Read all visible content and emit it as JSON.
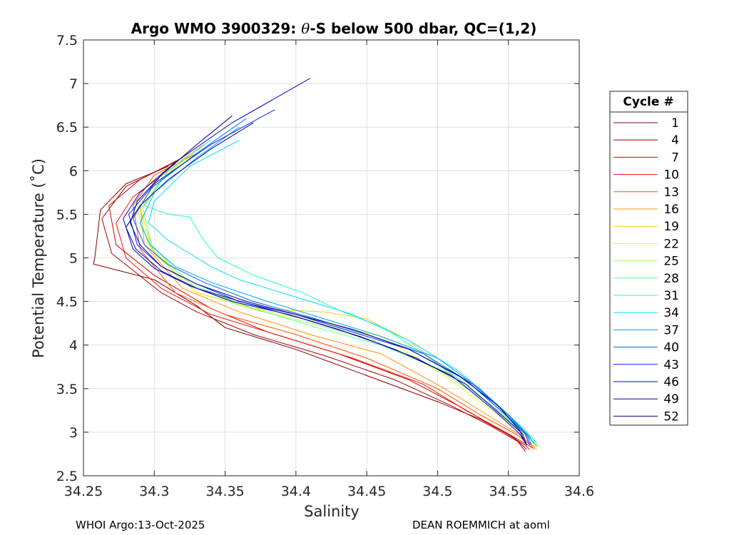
{
  "chart_data": {
    "type": "line",
    "title": "Argo WMO 3900329: θ-S below 500 dbar,  QC=(1,2)",
    "title_parts": {
      "pre": "Argo WMO 3900329: ",
      "theta": "θ",
      "post": "-S below 500 dbar,  QC=(1,2)"
    },
    "xlabel": "Salinity",
    "ylabel": "Potential Temperature (˚C)",
    "xlim": [
      34.25,
      34.6
    ],
    "ylim": [
      2.5,
      7.5
    ],
    "xticks": [
      34.25,
      34.3,
      34.35,
      34.4,
      34.45,
      34.5,
      34.55,
      34.6
    ],
    "xtick_labels": [
      "34.25",
      "34.3",
      "34.35",
      "34.4",
      "34.45",
      "34.5",
      "34.55",
      "34.6"
    ],
    "yticks": [
      2.5,
      3,
      3.5,
      4,
      4.5,
      5,
      5.5,
      6,
      6.5,
      7,
      7.5
    ],
    "ytick_labels": [
      "2.5",
      "3",
      "3.5",
      "4",
      "4.5",
      "5",
      "5.5",
      "6",
      "6.5",
      "7",
      "7.5"
    ],
    "grid": true,
    "legend_title": "Cycle #",
    "legend_position": "right",
    "series": [
      {
        "name": "1",
        "color": "#800000",
        "points": [
          [
            34.31,
            6.05
          ],
          [
            34.28,
            5.85
          ],
          [
            34.262,
            5.55
          ],
          [
            34.258,
            5.0
          ],
          [
            34.257,
            4.93
          ],
          [
            34.3,
            4.75
          ],
          [
            34.33,
            4.45
          ],
          [
            34.35,
            4.2
          ],
          [
            34.4,
            3.95
          ],
          [
            34.45,
            3.65
          ],
          [
            34.5,
            3.35
          ],
          [
            34.53,
            3.15
          ],
          [
            34.555,
            2.93
          ],
          [
            34.562,
            2.78
          ]
        ]
      },
      {
        "name": "4",
        "color": "#a80000",
        "points": [
          [
            34.315,
            6.1
          ],
          [
            34.28,
            5.82
          ],
          [
            34.263,
            5.45
          ],
          [
            34.27,
            5.05
          ],
          [
            34.305,
            4.6
          ],
          [
            34.33,
            4.38
          ],
          [
            34.37,
            4.12
          ],
          [
            34.42,
            3.88
          ],
          [
            34.47,
            3.6
          ],
          [
            34.51,
            3.3
          ],
          [
            34.54,
            3.05
          ],
          [
            34.558,
            2.88
          ],
          [
            34.563,
            2.8
          ]
        ]
      },
      {
        "name": "7",
        "color": "#d00000",
        "points": [
          [
            34.32,
            6.15
          ],
          [
            34.29,
            5.9
          ],
          [
            34.268,
            5.6
          ],
          [
            34.273,
            5.15
          ],
          [
            34.3,
            4.8
          ],
          [
            34.34,
            4.42
          ],
          [
            34.38,
            4.15
          ],
          [
            34.43,
            3.9
          ],
          [
            34.48,
            3.6
          ],
          [
            34.515,
            3.3
          ],
          [
            34.545,
            3.02
          ],
          [
            34.562,
            2.85
          ],
          [
            34.565,
            2.8
          ]
        ]
      },
      {
        "name": "10",
        "color": "#ff1000",
        "points": [
          [
            34.31,
            6.0
          ],
          [
            34.285,
            5.7
          ],
          [
            34.273,
            5.4
          ],
          [
            34.28,
            5.0
          ],
          [
            34.305,
            4.65
          ],
          [
            34.34,
            4.35
          ],
          [
            34.39,
            4.1
          ],
          [
            34.44,
            3.85
          ],
          [
            34.49,
            3.55
          ],
          [
            34.52,
            3.25
          ],
          [
            34.548,
            3.0
          ],
          [
            34.563,
            2.86
          ],
          [
            34.567,
            2.82
          ]
        ]
      },
      {
        "name": "13",
        "color": "#ff5000",
        "points": [
          [
            34.33,
            6.2
          ],
          [
            34.3,
            5.95
          ],
          [
            34.285,
            5.6
          ],
          [
            34.29,
            5.1
          ],
          [
            34.315,
            4.6
          ],
          [
            34.35,
            4.35
          ],
          [
            34.4,
            4.12
          ],
          [
            34.45,
            3.85
          ],
          [
            34.5,
            3.5
          ],
          [
            34.53,
            3.2
          ],
          [
            34.555,
            2.98
          ],
          [
            34.566,
            2.85
          ],
          [
            34.568,
            2.8
          ]
        ]
      },
      {
        "name": "16",
        "color": "#ff9000",
        "points": [
          [
            34.335,
            6.3
          ],
          [
            34.305,
            5.95
          ],
          [
            34.29,
            5.6
          ],
          [
            34.293,
            5.15
          ],
          [
            34.32,
            4.65
          ],
          [
            34.36,
            4.38
          ],
          [
            34.41,
            4.12
          ],
          [
            34.46,
            3.9
          ],
          [
            34.505,
            3.5
          ],
          [
            34.535,
            3.2
          ],
          [
            34.558,
            2.97
          ],
          [
            34.567,
            2.85
          ],
          [
            34.57,
            2.8
          ]
        ]
      },
      {
        "name": "19",
        "color": "#ffd000",
        "points": [
          [
            34.33,
            6.25
          ],
          [
            34.305,
            5.9
          ],
          [
            34.29,
            5.55
          ],
          [
            34.3,
            5.05
          ],
          [
            34.33,
            4.6
          ],
          [
            34.37,
            4.42
          ],
          [
            34.42,
            4.38
          ],
          [
            34.45,
            4.3
          ],
          [
            34.48,
            4.05
          ],
          [
            34.51,
            3.65
          ],
          [
            34.54,
            3.25
          ],
          [
            34.56,
            3.0
          ],
          [
            34.568,
            2.88
          ],
          [
            34.57,
            2.83
          ]
        ]
      },
      {
        "name": "22",
        "color": "#e0ff20",
        "points": [
          [
            34.325,
            6.2
          ],
          [
            34.302,
            5.9
          ],
          [
            34.29,
            5.6
          ],
          [
            34.298,
            5.1
          ],
          [
            34.33,
            4.65
          ],
          [
            34.37,
            4.42
          ],
          [
            34.42,
            4.25
          ],
          [
            34.46,
            4.1
          ],
          [
            34.5,
            3.7
          ],
          [
            34.53,
            3.35
          ],
          [
            34.555,
            3.05
          ],
          [
            34.568,
            2.88
          ],
          [
            34.571,
            2.83
          ]
        ]
      },
      {
        "name": "25",
        "color": "#a0ff60",
        "points": [
          [
            34.33,
            6.2
          ],
          [
            34.3,
            5.85
          ],
          [
            34.288,
            5.55
          ],
          [
            34.296,
            5.15
          ],
          [
            34.32,
            4.72
          ],
          [
            34.36,
            4.45
          ],
          [
            34.41,
            4.25
          ],
          [
            34.455,
            4.05
          ],
          [
            34.5,
            3.72
          ],
          [
            34.53,
            3.4
          ],
          [
            34.555,
            3.1
          ],
          [
            34.566,
            2.92
          ],
          [
            34.57,
            2.85
          ]
        ]
      },
      {
        "name": "28",
        "color": "#60ff90",
        "points": [
          [
            34.335,
            6.25
          ],
          [
            34.305,
            5.9
          ],
          [
            34.292,
            5.58
          ],
          [
            34.298,
            5.15
          ],
          [
            34.325,
            4.7
          ],
          [
            34.37,
            4.42
          ],
          [
            34.415,
            4.2
          ],
          [
            34.46,
            4.0
          ],
          [
            34.505,
            3.7
          ],
          [
            34.535,
            3.35
          ],
          [
            34.558,
            3.05
          ],
          [
            34.568,
            2.88
          ],
          [
            34.572,
            2.84
          ]
        ]
      },
      {
        "name": "31",
        "color": "#20ffc0",
        "points": [
          [
            34.34,
            6.35
          ],
          [
            34.31,
            6.0
          ],
          [
            34.293,
            5.6
          ],
          [
            34.31,
            5.5
          ],
          [
            34.325,
            5.47
          ],
          [
            34.335,
            5.2
          ],
          [
            34.345,
            5.0
          ],
          [
            34.37,
            4.8
          ],
          [
            34.405,
            4.6
          ],
          [
            34.43,
            4.4
          ],
          [
            34.462,
            4.2
          ],
          [
            34.49,
            3.9
          ],
          [
            34.52,
            3.55
          ],
          [
            34.545,
            3.2
          ],
          [
            34.562,
            2.98
          ],
          [
            34.57,
            2.85
          ]
        ]
      },
      {
        "name": "34",
        "color": "#00e0ff",
        "points": [
          [
            34.36,
            6.35
          ],
          [
            34.325,
            6.05
          ],
          [
            34.3,
            5.65
          ],
          [
            34.296,
            5.4
          ],
          [
            34.31,
            5.2
          ],
          [
            34.33,
            5.0
          ],
          [
            34.34,
            4.9
          ],
          [
            34.36,
            4.75
          ],
          [
            34.4,
            4.55
          ],
          [
            34.44,
            4.35
          ],
          [
            34.48,
            4.05
          ],
          [
            34.515,
            3.7
          ],
          [
            34.54,
            3.35
          ],
          [
            34.56,
            3.05
          ],
          [
            34.57,
            2.88
          ]
        ]
      },
      {
        "name": "37",
        "color": "#00a0ff",
        "points": [
          [
            34.36,
            6.5
          ],
          [
            34.33,
            6.15
          ],
          [
            34.3,
            5.75
          ],
          [
            34.29,
            5.4
          ],
          [
            34.297,
            5.15
          ],
          [
            34.315,
            4.9
          ],
          [
            34.34,
            4.72
          ],
          [
            34.38,
            4.5
          ],
          [
            34.42,
            4.3
          ],
          [
            34.46,
            4.1
          ],
          [
            34.5,
            3.85
          ],
          [
            34.53,
            3.5
          ],
          [
            34.552,
            3.15
          ],
          [
            34.565,
            2.95
          ],
          [
            34.568,
            2.86
          ]
        ]
      },
      {
        "name": "40",
        "color": "#0060ff",
        "points": [
          [
            34.365,
            6.6
          ],
          [
            34.33,
            6.2
          ],
          [
            34.298,
            5.8
          ],
          [
            34.285,
            5.45
          ],
          [
            34.293,
            5.15
          ],
          [
            34.31,
            4.92
          ],
          [
            34.335,
            4.72
          ],
          [
            34.37,
            4.5
          ],
          [
            34.41,
            4.32
          ],
          [
            34.45,
            4.12
          ],
          [
            34.49,
            3.9
          ],
          [
            34.525,
            3.55
          ],
          [
            34.55,
            3.2
          ],
          [
            34.563,
            2.98
          ],
          [
            34.566,
            2.86
          ]
        ]
      },
      {
        "name": "43",
        "color": "#0020ff",
        "points": [
          [
            34.385,
            6.7
          ],
          [
            34.34,
            6.3
          ],
          [
            34.3,
            5.85
          ],
          [
            34.282,
            5.5
          ],
          [
            34.288,
            5.15
          ],
          [
            34.305,
            4.9
          ],
          [
            34.33,
            4.7
          ],
          [
            34.36,
            4.5
          ],
          [
            34.4,
            4.35
          ],
          [
            34.44,
            4.15
          ],
          [
            34.48,
            3.95
          ],
          [
            34.52,
            3.6
          ],
          [
            34.548,
            3.2
          ],
          [
            34.562,
            2.98
          ],
          [
            34.565,
            2.85
          ]
        ]
      },
      {
        "name": "46",
        "color": "#0000e0",
        "points": [
          [
            34.41,
            7.06
          ],
          [
            34.355,
            6.55
          ],
          [
            34.315,
            6.1
          ],
          [
            34.29,
            5.75
          ],
          [
            34.278,
            5.45
          ],
          [
            34.285,
            5.1
          ],
          [
            34.3,
            4.88
          ],
          [
            34.325,
            4.68
          ],
          [
            34.355,
            4.5
          ],
          [
            34.395,
            4.35
          ],
          [
            34.43,
            4.18
          ],
          [
            34.47,
            3.95
          ],
          [
            34.51,
            3.65
          ],
          [
            34.54,
            3.25
          ],
          [
            34.558,
            2.98
          ],
          [
            34.563,
            2.85
          ]
        ]
      },
      {
        "name": "49",
        "color": "#0000a0",
        "points": [
          [
            34.37,
            6.55
          ],
          [
            34.34,
            6.25
          ],
          [
            34.31,
            5.9
          ],
          [
            34.29,
            5.6
          ],
          [
            34.28,
            5.35
          ],
          [
            34.287,
            5.1
          ],
          [
            34.305,
            4.85
          ],
          [
            34.33,
            4.65
          ],
          [
            34.365,
            4.48
          ],
          [
            34.405,
            4.3
          ],
          [
            34.445,
            4.1
          ],
          [
            34.485,
            3.85
          ],
          [
            34.52,
            3.55
          ],
          [
            34.545,
            3.2
          ],
          [
            34.56,
            2.98
          ],
          [
            34.563,
            2.85
          ]
        ]
      },
      {
        "name": "52",
        "color": "#000080",
        "points": [
          [
            34.355,
            6.63
          ],
          [
            34.33,
            6.3
          ],
          [
            34.305,
            5.95
          ],
          [
            34.288,
            5.65
          ],
          [
            34.283,
            5.4
          ],
          [
            34.29,
            5.15
          ],
          [
            34.305,
            4.9
          ],
          [
            34.33,
            4.7
          ],
          [
            34.365,
            4.5
          ],
          [
            34.4,
            4.35
          ],
          [
            34.44,
            4.18
          ],
          [
            34.48,
            3.95
          ],
          [
            34.515,
            3.65
          ],
          [
            34.543,
            3.3
          ],
          [
            34.558,
            3.02
          ],
          [
            34.562,
            2.87
          ]
        ]
      }
    ]
  },
  "footer": {
    "left": "WHOI Argo:13-Oct-2025",
    "right": "DEAN ROEMMICH at aoml"
  }
}
